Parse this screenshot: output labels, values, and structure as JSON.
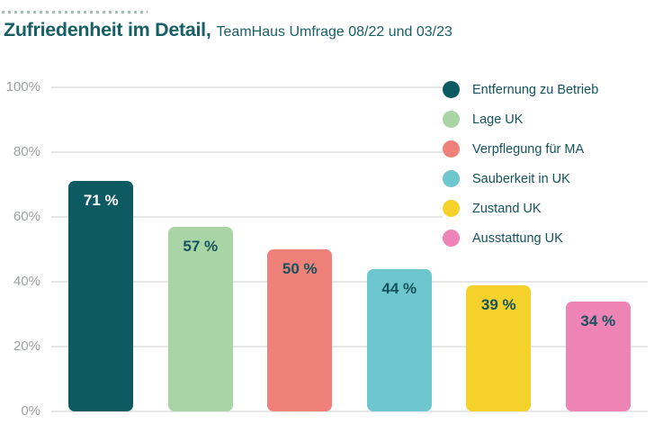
{
  "header": {
    "title": "Zufriedenheit im Detail,",
    "subtitle": "TeamHaus Umfrage 08/22 und 03/23"
  },
  "chart_data": {
    "type": "bar",
    "title": "Zufriedenheit im Detail, TeamHaus Umfrage 08/22 und 03/23",
    "categories": [
      "Entfernung zu Betrieb",
      "Lage UK",
      "Verpflegung für MA",
      "Sauberkeit in UK",
      "Zustand UK",
      "Ausstattung UK"
    ],
    "values": [
      71,
      57,
      50,
      44,
      39,
      34
    ],
    "value_labels": [
      "71 %",
      "57 %",
      "50 %",
      "44 %",
      "39 %",
      "34 %"
    ],
    "bar_colors": [
      "#0d5a62",
      "#a9d4a6",
      "#f0807a",
      "#6ec6ce",
      "#f5d22b",
      "#ee83b5"
    ],
    "value_label_colors": [
      "#ffffff",
      "#14535d",
      "#14535d",
      "#14535d",
      "#14535d",
      "#14535d"
    ],
    "xlabel": "",
    "ylabel": "",
    "ylim": [
      0,
      100
    ],
    "y_tick_values": [
      0,
      20,
      40,
      60,
      80,
      100
    ],
    "y_tick_labels": [
      "0%",
      "20%",
      "40%",
      "60%",
      "80%",
      "100%"
    ],
    "grid": true,
    "legend_position": "top-right",
    "legend": [
      {
        "label": "Entfernung zu Betrieb",
        "color": "#0d5a62"
      },
      {
        "label": "Lage UK",
        "color": "#a9d4a6"
      },
      {
        "label": "Verpflegung für MA",
        "color": "#f0807a"
      },
      {
        "label": "Sauberkeit in UK",
        "color": "#6ec6ce"
      },
      {
        "label": "Zustand UK",
        "color": "#f5d22b"
      },
      {
        "label": "Ausstattung UK",
        "color": "#ee83b5"
      }
    ]
  },
  "colors": {
    "background": "#ffffff",
    "title_text": "#175f67",
    "legend_text": "#14535d",
    "axis_text": "#9da1a0",
    "gridline": "#e7e7e7",
    "decor_dots": "#a9beb5"
  }
}
